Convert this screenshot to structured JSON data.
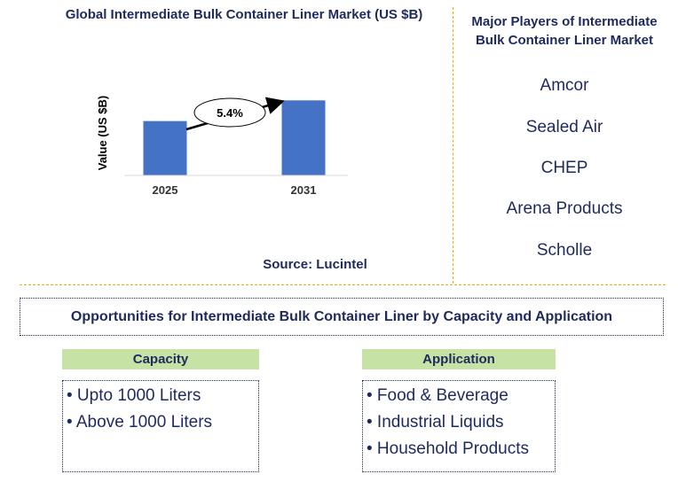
{
  "chart_data": {
    "type": "bar",
    "title": "Global Intermediate Bulk Container Liner Market (US $B)",
    "ylabel": "Value (US $B)",
    "xlabel": "",
    "categories": [
      "2025",
      "2031"
    ],
    "values": [
      1.0,
      1.38
    ],
    "annotation": {
      "label": "5.4%",
      "meaning": "growth arrow from 2025 to 2031"
    },
    "colors": {
      "bar": "#4472c4",
      "title": "#1f2a5c"
    },
    "grid": false
  },
  "source": "Source: Lucintel",
  "players": {
    "title": "Major Players of Intermediate Bulk Container Liner Market",
    "items": [
      "Amcor",
      "Sealed Air",
      "CHEP",
      "Arena Products",
      "Scholle"
    ]
  },
  "opportunities": {
    "title": "Opportunities for Intermediate Bulk Container Liner by Capacity and Application",
    "capacity": {
      "header": "Capacity",
      "items": [
        "• Upto 1000 Liters",
        "• Above 1000 Liters"
      ]
    },
    "application": {
      "header": "Application",
      "items": [
        "• Food & Beverage",
        "• Industrial Liquids",
        "• Household Products"
      ]
    }
  }
}
